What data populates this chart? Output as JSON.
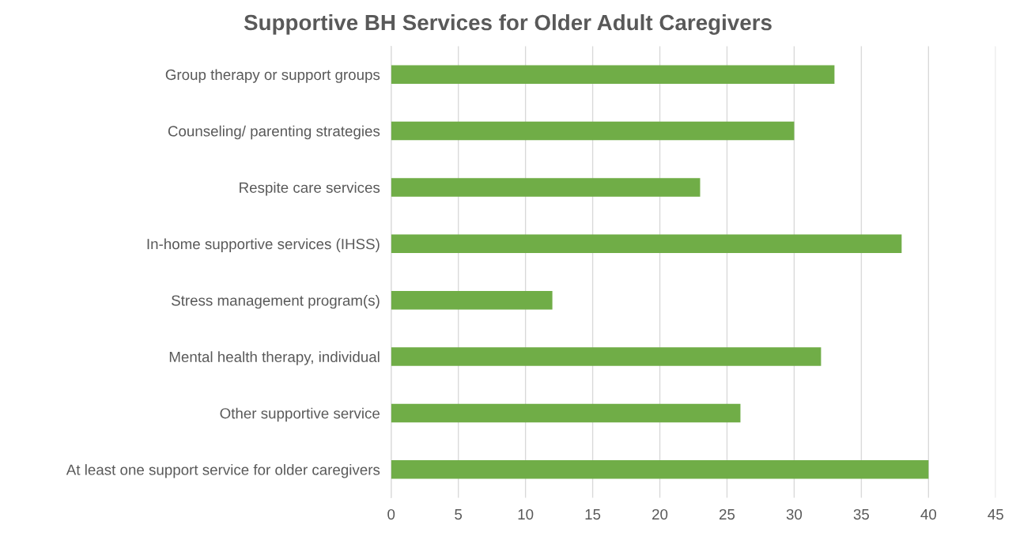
{
  "chart_data": {
    "type": "bar",
    "title": "Supportive BH Services for Older Adult Caregivers",
    "orientation": "horizontal",
    "categories": [
      "Group therapy or support groups",
      "Counseling/ parenting strategies",
      "Respite care services",
      "In-home supportive services (IHSS)",
      "Stress management program(s)",
      "Mental health therapy, individual",
      "Other supportive service",
      "At least one support service for older caregivers"
    ],
    "values": [
      33,
      30,
      23,
      38,
      12,
      32,
      26,
      40
    ],
    "color": "#70ad47",
    "xlim": [
      0,
      45
    ],
    "xticks": [
      0,
      5,
      10,
      15,
      20,
      25,
      30,
      35,
      40,
      45
    ],
    "grid": "x"
  }
}
